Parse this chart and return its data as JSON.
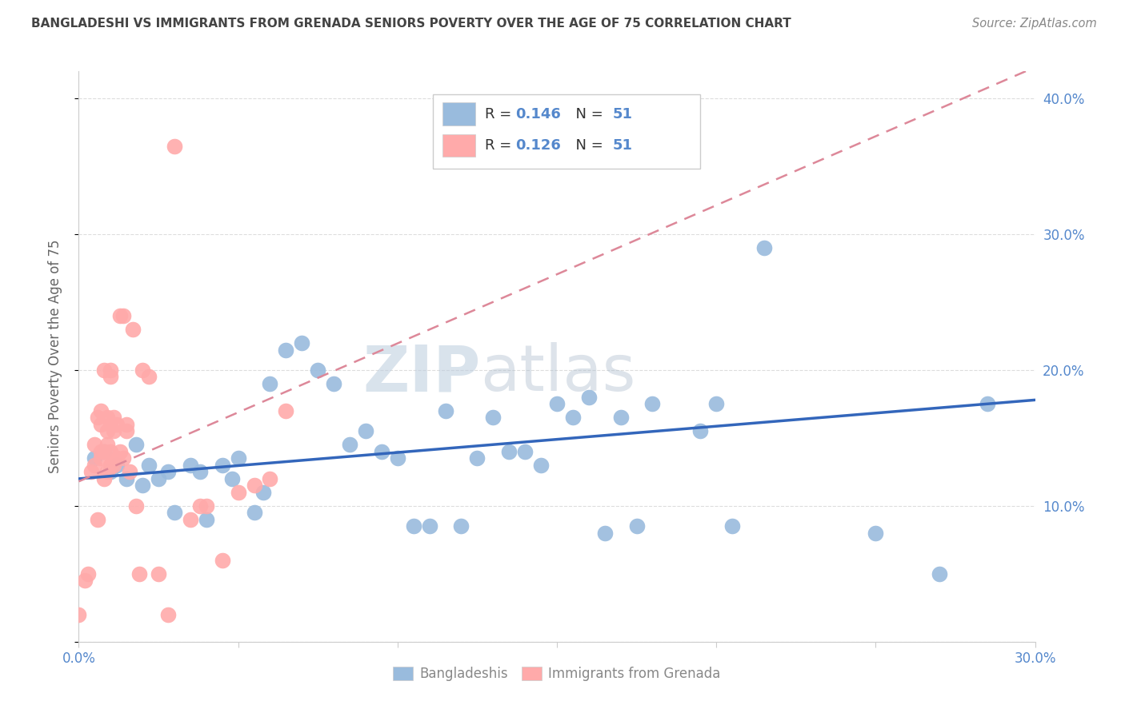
{
  "title": "BANGLADESHI VS IMMIGRANTS FROM GRENADA SENIORS POVERTY OVER THE AGE OF 75 CORRELATION CHART",
  "source": "Source: ZipAtlas.com",
  "ylabel_label": "Seniors Poverty Over the Age of 75",
  "x_min": 0.0,
  "x_max": 0.3,
  "y_min": 0.0,
  "y_max": 0.42,
  "x_ticks": [
    0.0,
    0.05,
    0.1,
    0.15,
    0.2,
    0.25,
    0.3
  ],
  "x_tick_labels": [
    "0.0%",
    "",
    "",
    "",
    "",
    "",
    "30.0%"
  ],
  "y_ticks": [
    0.0,
    0.1,
    0.2,
    0.3,
    0.4
  ],
  "y_tick_labels": [
    "",
    "10.0%",
    "20.0%",
    "30.0%",
    "40.0%"
  ],
  "watermark_zip": "ZIP",
  "watermark_atlas": "atlas",
  "legend_r1": "R = 0.146",
  "legend_n1": "N = 51",
  "legend_r2": "R = 0.126",
  "legend_n2": "N = 51",
  "color_blue": "#99BBDD",
  "color_pink": "#FFAAAA",
  "color_blue_line": "#3366BB",
  "color_pink_line": "#DD8899",
  "color_axis_blue": "#5588CC",
  "color_grid": "#DDDDDD",
  "color_title": "#444444",
  "color_source": "#888888",
  "blue_scatter_x": [
    0.005,
    0.008,
    0.01,
    0.012,
    0.015,
    0.018,
    0.02,
    0.022,
    0.025,
    0.028,
    0.03,
    0.035,
    0.038,
    0.04,
    0.045,
    0.048,
    0.05,
    0.055,
    0.058,
    0.06,
    0.065,
    0.07,
    0.075,
    0.08,
    0.085,
    0.09,
    0.095,
    0.1,
    0.105,
    0.11,
    0.115,
    0.12,
    0.125,
    0.13,
    0.135,
    0.14,
    0.145,
    0.15,
    0.155,
    0.16,
    0.165,
    0.17,
    0.175,
    0.18,
    0.195,
    0.2,
    0.205,
    0.215,
    0.25,
    0.27,
    0.285
  ],
  "blue_scatter_y": [
    0.135,
    0.14,
    0.125,
    0.13,
    0.12,
    0.145,
    0.115,
    0.13,
    0.12,
    0.125,
    0.095,
    0.13,
    0.125,
    0.09,
    0.13,
    0.12,
    0.135,
    0.095,
    0.11,
    0.19,
    0.215,
    0.22,
    0.2,
    0.19,
    0.145,
    0.155,
    0.14,
    0.135,
    0.085,
    0.085,
    0.17,
    0.085,
    0.135,
    0.165,
    0.14,
    0.14,
    0.13,
    0.175,
    0.165,
    0.18,
    0.08,
    0.165,
    0.085,
    0.175,
    0.155,
    0.175,
    0.085,
    0.29,
    0.08,
    0.05,
    0.175
  ],
  "pink_scatter_x": [
    0.0,
    0.002,
    0.003,
    0.004,
    0.005,
    0.005,
    0.006,
    0.006,
    0.007,
    0.007,
    0.007,
    0.007,
    0.008,
    0.008,
    0.008,
    0.009,
    0.009,
    0.009,
    0.009,
    0.01,
    0.01,
    0.01,
    0.01,
    0.011,
    0.011,
    0.011,
    0.012,
    0.012,
    0.013,
    0.013,
    0.014,
    0.014,
    0.015,
    0.015,
    0.016,
    0.017,
    0.018,
    0.019,
    0.02,
    0.022,
    0.025,
    0.028,
    0.03,
    0.035,
    0.038,
    0.04,
    0.045,
    0.05,
    0.055,
    0.06,
    0.065
  ],
  "pink_scatter_y": [
    0.02,
    0.045,
    0.05,
    0.125,
    0.13,
    0.145,
    0.09,
    0.165,
    0.16,
    0.14,
    0.17,
    0.135,
    0.12,
    0.14,
    0.2,
    0.125,
    0.145,
    0.155,
    0.165,
    0.13,
    0.14,
    0.195,
    0.2,
    0.13,
    0.155,
    0.165,
    0.135,
    0.16,
    0.14,
    0.24,
    0.135,
    0.24,
    0.155,
    0.16,
    0.125,
    0.23,
    0.1,
    0.05,
    0.2,
    0.195,
    0.05,
    0.02,
    0.365,
    0.09,
    0.1,
    0.1,
    0.06,
    0.11,
    0.115,
    0.12,
    0.17
  ],
  "blue_trend_x": [
    0.0,
    0.3
  ],
  "blue_trend_y": [
    0.12,
    0.178
  ],
  "pink_trend_x": [
    0.0,
    0.3
  ],
  "pink_trend_y": [
    0.118,
    0.423
  ]
}
